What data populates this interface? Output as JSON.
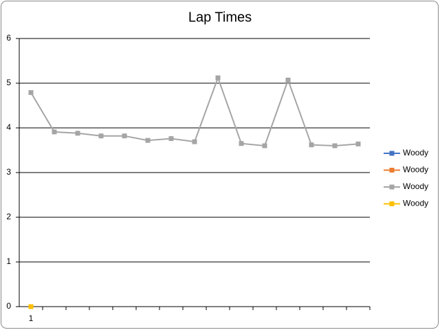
{
  "chart_data": {
    "type": "line",
    "title": "Lap Times",
    "categories": [
      "1",
      null,
      null,
      null,
      null,
      null,
      null,
      null,
      null,
      null,
      null,
      null,
      null,
      null,
      null
    ],
    "series": [
      {
        "name": "Woody",
        "color": "#4472c4",
        "values": [
          null,
          null,
          null,
          null,
          null,
          null,
          null,
          null,
          null,
          null,
          null,
          null,
          null,
          null,
          null
        ]
      },
      {
        "name": "Woody",
        "color": "#ed7d31",
        "values": [
          null,
          null,
          null,
          null,
          null,
          null,
          null,
          null,
          null,
          null,
          null,
          null,
          null,
          null,
          null
        ]
      },
      {
        "name": "Woody",
        "color": "#a5a5a5",
        "values": [
          4.79,
          3.91,
          3.88,
          3.82,
          3.82,
          3.72,
          3.76,
          3.69,
          5.12,
          3.65,
          3.6,
          5.07,
          3.62,
          3.6,
          3.64
        ]
      },
      {
        "name": "Woody",
        "color": "#ffc000",
        "values": [
          0,
          null,
          null,
          null,
          null,
          null,
          null,
          null,
          null,
          null,
          null,
          null,
          null,
          null,
          null
        ]
      }
    ],
    "ylim": [
      0,
      6
    ],
    "yticks": [
      0,
      1,
      2,
      3,
      4,
      5,
      6
    ],
    "grid": true,
    "legend": "right"
  }
}
